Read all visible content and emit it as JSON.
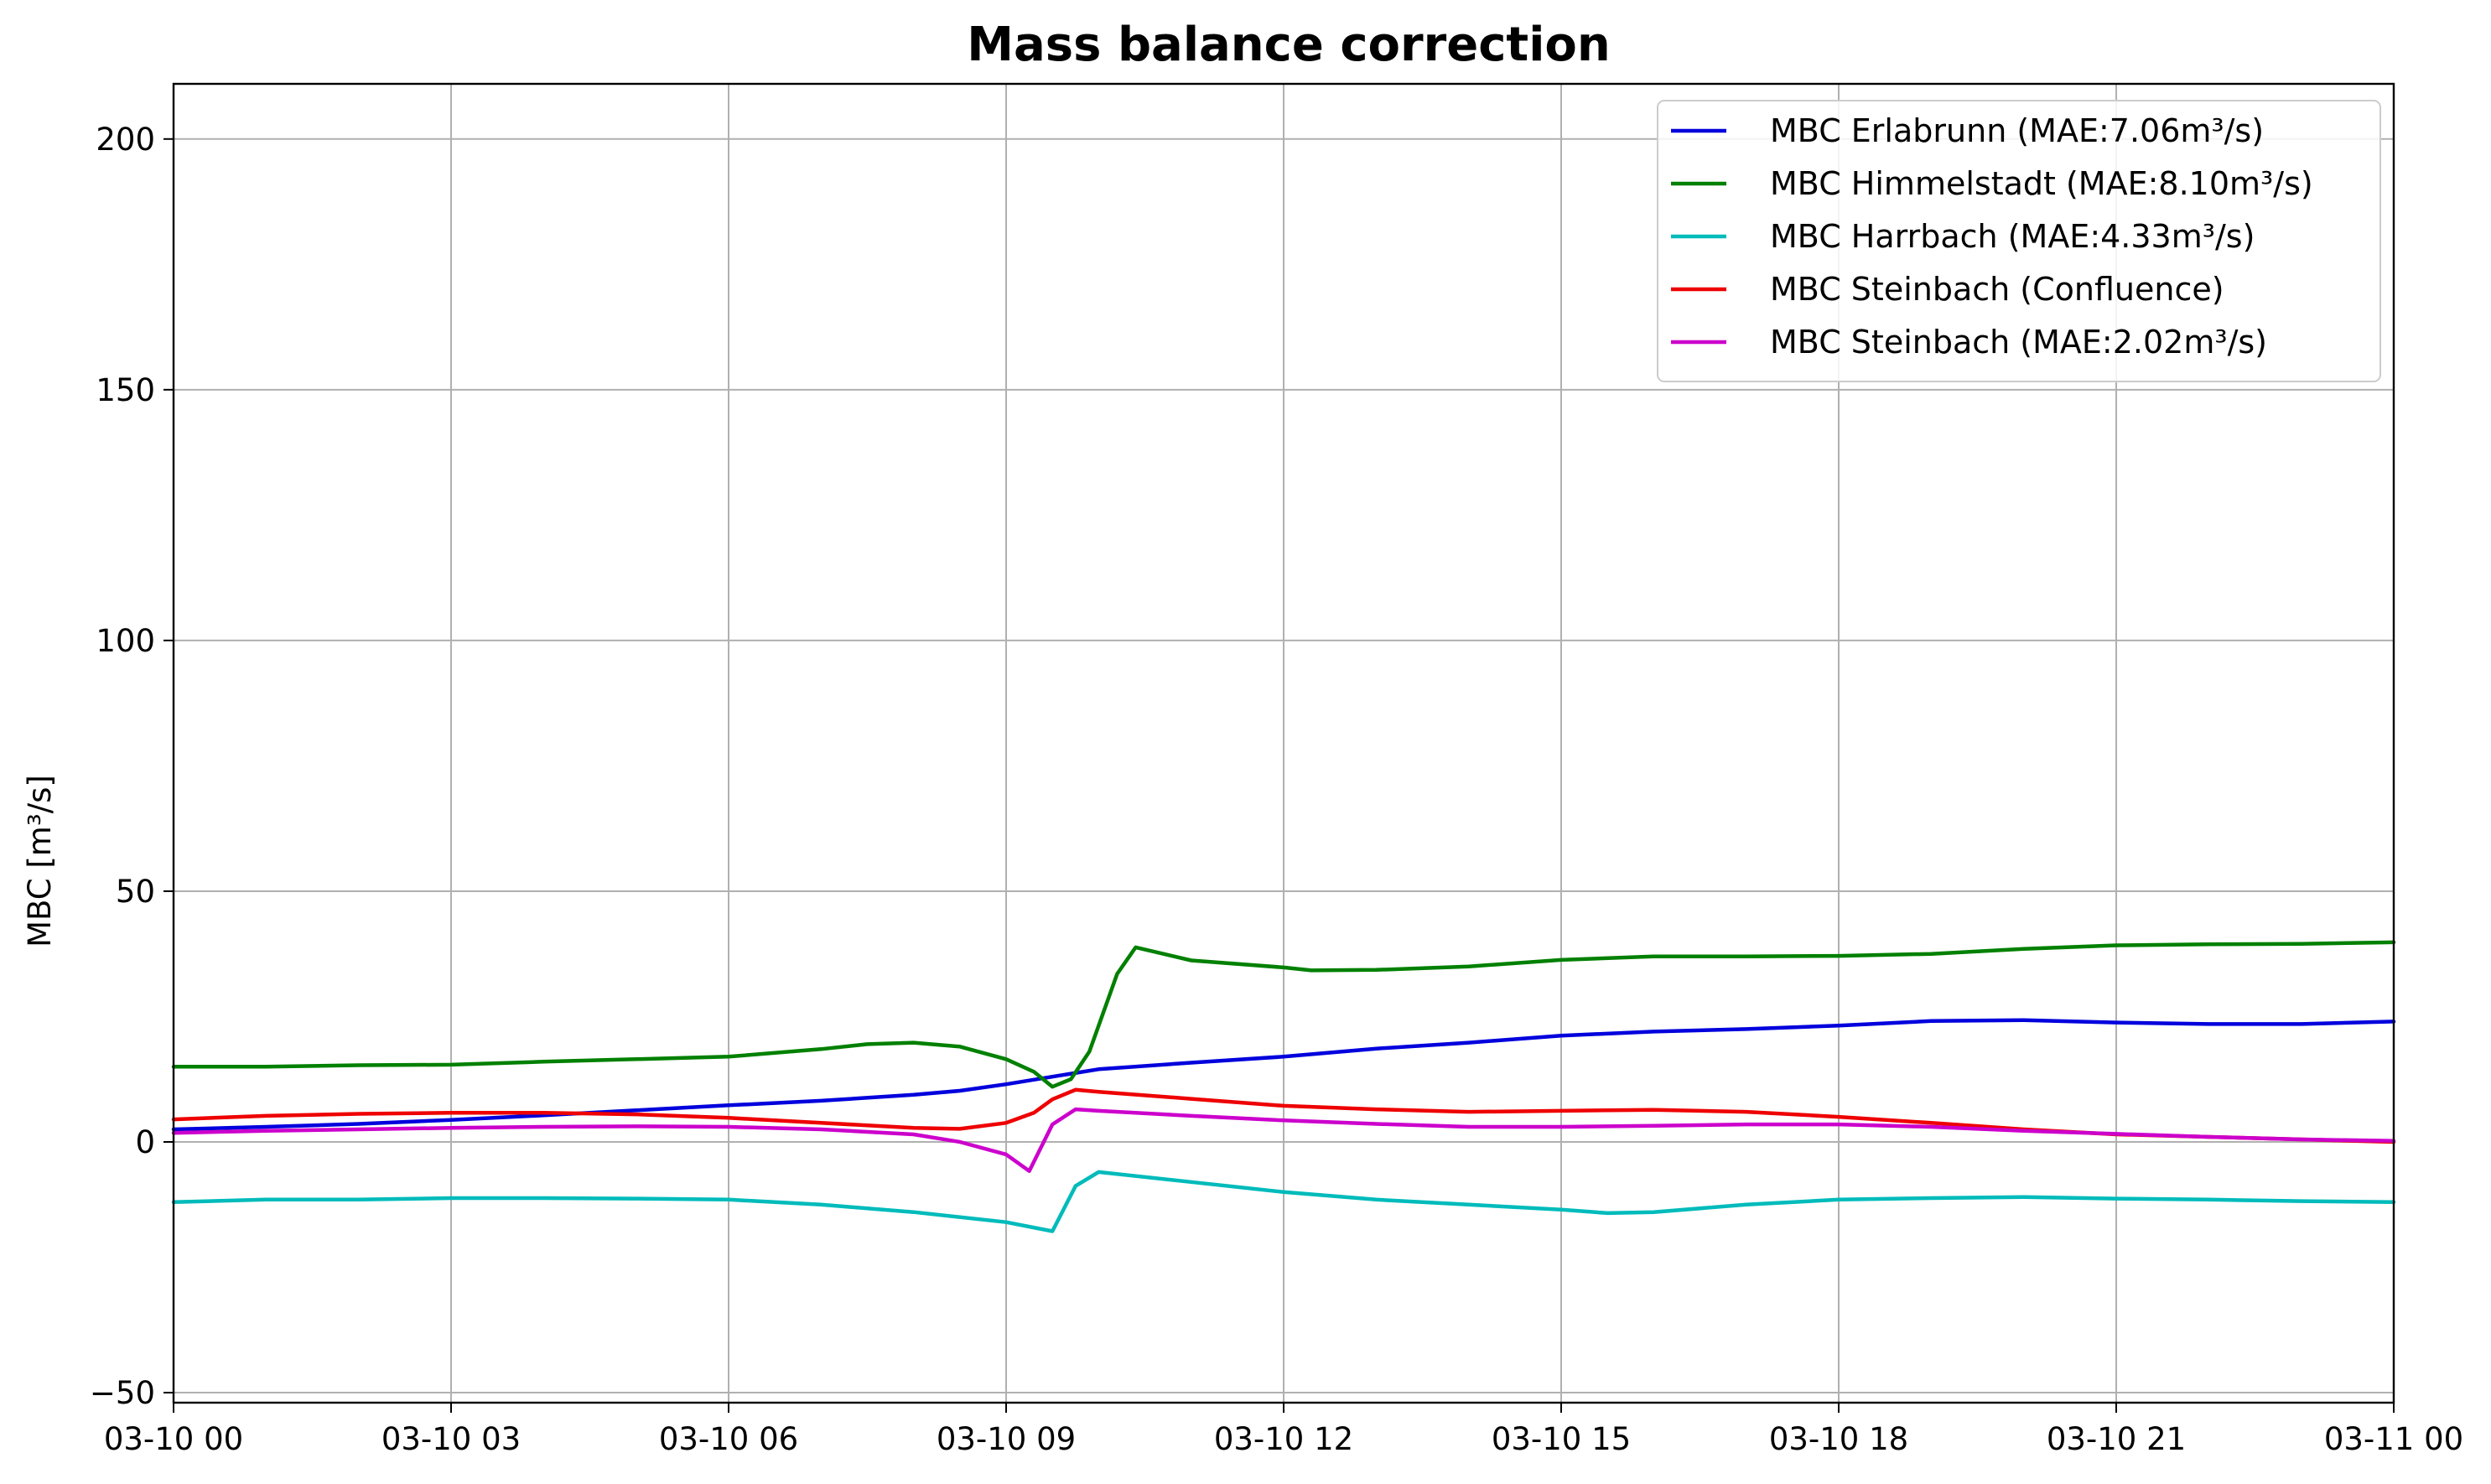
{
  "chart_data": {
    "type": "line",
    "title": "Mass balance correction",
    "xlabel": "",
    "ylabel": "MBC [m³/s]",
    "ylim": [
      -52,
      211
    ],
    "xlim_hours": [
      0,
      24
    ],
    "x_ticks": [
      {
        "hours": 0,
        "label": "03-10 00"
      },
      {
        "hours": 3,
        "label": "03-10 03"
      },
      {
        "hours": 6,
        "label": "03-10 06"
      },
      {
        "hours": 9,
        "label": "03-10 09"
      },
      {
        "hours": 12,
        "label": "03-10 12"
      },
      {
        "hours": 15,
        "label": "03-10 15"
      },
      {
        "hours": 18,
        "label": "03-10 18"
      },
      {
        "hours": 21,
        "label": "03-10 21"
      },
      {
        "hours": 24,
        "label": "03-11 00"
      }
    ],
    "y_ticks": [
      -50,
      0,
      50,
      100,
      150,
      200
    ],
    "grid": true,
    "legend_position": "top-right",
    "series": [
      {
        "name": "MBC Erlabrunn (MAE:7.06m³/s)",
        "color": "#0000dd",
        "points": [
          [
            0,
            2.5
          ],
          [
            1,
            3
          ],
          [
            2,
            3.6
          ],
          [
            3,
            4.4
          ],
          [
            4,
            5.3
          ],
          [
            5,
            6.3
          ],
          [
            6,
            7.3
          ],
          [
            7,
            8.2
          ],
          [
            8,
            9.4
          ],
          [
            8.5,
            10.2
          ],
          [
            9,
            11.5
          ],
          [
            9.5,
            13
          ],
          [
            10,
            14.5
          ],
          [
            11,
            15.8
          ],
          [
            12,
            17
          ],
          [
            13,
            18.6
          ],
          [
            14,
            19.8
          ],
          [
            15,
            21.2
          ],
          [
            16,
            22
          ],
          [
            17,
            22.5
          ],
          [
            18,
            23.2
          ],
          [
            19,
            24.1
          ],
          [
            20,
            24.3
          ],
          [
            21,
            23.8
          ],
          [
            22,
            23.5
          ],
          [
            23,
            23.5
          ],
          [
            24,
            24
          ]
        ]
      },
      {
        "name": "MBC Himmelstadt (MAE:8.10m³/s)",
        "color": "#008000",
        "points": [
          [
            0,
            15
          ],
          [
            1,
            15
          ],
          [
            2,
            15.3
          ],
          [
            3,
            15.4
          ],
          [
            4,
            16
          ],
          [
            5,
            16.5
          ],
          [
            6,
            17
          ],
          [
            7,
            18.5
          ],
          [
            7.5,
            19.5
          ],
          [
            8,
            19.8
          ],
          [
            8.5,
            19
          ],
          [
            9,
            16.5
          ],
          [
            9.3,
            14
          ],
          [
            9.5,
            11
          ],
          [
            9.7,
            12.5
          ],
          [
            9.9,
            18
          ],
          [
            10.2,
            33.5
          ],
          [
            10.4,
            38.8
          ],
          [
            10.7,
            37.5
          ],
          [
            11,
            36.2
          ],
          [
            12,
            34.8
          ],
          [
            12.3,
            34.2
          ],
          [
            13,
            34.3
          ],
          [
            14,
            35
          ],
          [
            15,
            36.3
          ],
          [
            16,
            37
          ],
          [
            17,
            37
          ],
          [
            18,
            37.1
          ],
          [
            19,
            37.5
          ],
          [
            20,
            38.5
          ],
          [
            21,
            39.2
          ],
          [
            22,
            39.4
          ],
          [
            23,
            39.5
          ],
          [
            24,
            39.8
          ]
        ]
      },
      {
        "name": "MBC Harrbach (MAE:4.33m³/s)",
        "color": "#00bbbb",
        "points": [
          [
            0,
            -12
          ],
          [
            1,
            -11.5
          ],
          [
            2,
            -11.5
          ],
          [
            3,
            -11.2
          ],
          [
            4,
            -11.2
          ],
          [
            5,
            -11.3
          ],
          [
            6,
            -11.5
          ],
          [
            7,
            -12.5
          ],
          [
            8,
            -14
          ],
          [
            9,
            -16
          ],
          [
            9.5,
            -17.8
          ],
          [
            9.75,
            -8.8
          ],
          [
            10,
            -6
          ],
          [
            11,
            -8
          ],
          [
            12,
            -10
          ],
          [
            13,
            -11.5
          ],
          [
            14,
            -12.5
          ],
          [
            15,
            -13.5
          ],
          [
            15.5,
            -14.2
          ],
          [
            16,
            -14
          ],
          [
            17,
            -12.5
          ],
          [
            18,
            -11.5
          ],
          [
            19,
            -11.2
          ],
          [
            20,
            -11
          ],
          [
            21,
            -11.3
          ],
          [
            22,
            -11.5
          ],
          [
            23,
            -11.8
          ],
          [
            24,
            -12
          ]
        ]
      },
      {
        "name": "MBC Steinbach (Confluence)",
        "color": "#ee0000",
        "points": [
          [
            0,
            4.5
          ],
          [
            1,
            5.2
          ],
          [
            2,
            5.6
          ],
          [
            3,
            5.8
          ],
          [
            4,
            5.8
          ],
          [
            5,
            5.5
          ],
          [
            6,
            4.8
          ],
          [
            7,
            3.8
          ],
          [
            8,
            2.8
          ],
          [
            8.5,
            2.6
          ],
          [
            9,
            3.8
          ],
          [
            9.3,
            5.8
          ],
          [
            9.5,
            8.5
          ],
          [
            9.75,
            10.4
          ],
          [
            10,
            10
          ],
          [
            11,
            8.6
          ],
          [
            12,
            7.2
          ],
          [
            13,
            6.5
          ],
          [
            14,
            6
          ],
          [
            15,
            6.2
          ],
          [
            16,
            6.4
          ],
          [
            17,
            6
          ],
          [
            18,
            5
          ],
          [
            19,
            3.8
          ],
          [
            20,
            2.5
          ],
          [
            21,
            1.5
          ],
          [
            22,
            1
          ],
          [
            23,
            0.5
          ],
          [
            24,
            0
          ]
        ]
      },
      {
        "name": "MBC Steinbach (MAE:2.02m³/s)",
        "color": "#cc00cc",
        "points": [
          [
            0,
            1.8
          ],
          [
            1,
            2.2
          ],
          [
            2,
            2.5
          ],
          [
            3,
            2.8
          ],
          [
            4,
            3
          ],
          [
            5,
            3.1
          ],
          [
            6,
            3
          ],
          [
            7,
            2.5
          ],
          [
            8,
            1.5
          ],
          [
            8.5,
            0
          ],
          [
            9,
            -2.5
          ],
          [
            9.25,
            -5.8
          ],
          [
            9.5,
            3.5
          ],
          [
            9.75,
            6.5
          ],
          [
            10,
            6.2
          ],
          [
            11,
            5.2
          ],
          [
            12,
            4.3
          ],
          [
            13,
            3.6
          ],
          [
            14,
            3
          ],
          [
            15,
            3
          ],
          [
            16,
            3.2
          ],
          [
            17,
            3.5
          ],
          [
            18,
            3.5
          ],
          [
            19,
            3
          ],
          [
            20,
            2.2
          ],
          [
            21,
            1.6
          ],
          [
            22,
            1
          ],
          [
            23,
            0.5
          ],
          [
            24,
            0.2
          ]
        ]
      }
    ]
  }
}
